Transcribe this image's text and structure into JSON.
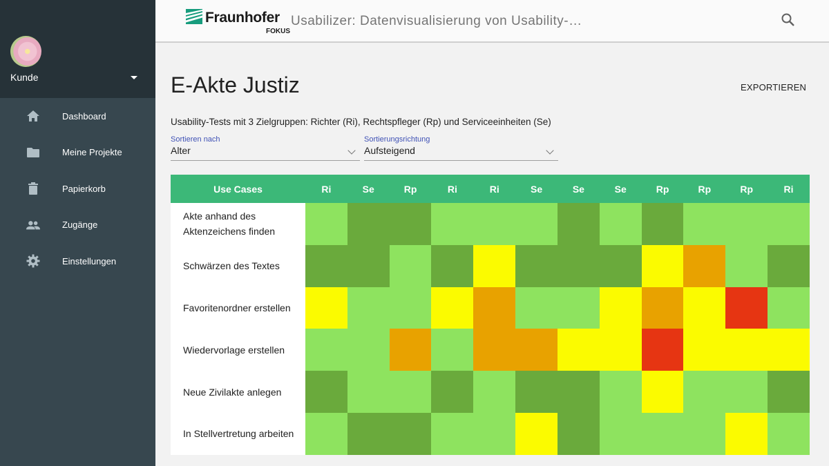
{
  "user": {
    "name": "Kunde"
  },
  "nav": [
    {
      "label": "Dashboard",
      "icon": "home-icon"
    },
    {
      "label": "Meine Projekte",
      "icon": "folder-icon"
    },
    {
      "label": "Papierkorb",
      "icon": "trash-icon"
    },
    {
      "label": "Zugänge",
      "icon": "people-icon"
    },
    {
      "label": "Einstellungen",
      "icon": "gear-icon"
    }
  ],
  "header": {
    "logo_text": "Fraunhofer",
    "logo_sub": "FOKUS",
    "title": "Usabilizer: Datenvisualisierung von Usability-…"
  },
  "page": {
    "title": "E-Akte Justiz",
    "export_label": "EXPORTIEREN",
    "subtitle": "Usability-Tests mit 3 Zielgruppen: Richter (Ri), Rechtspfleger (Rp) und Serviceeinheiten (Se)"
  },
  "sort": {
    "by_label": "Sortieren nach",
    "by_value": "Alter",
    "dir_label": "Sortierungsrichtung",
    "dir_value": "Aufsteigend"
  },
  "matrix": {
    "header_label": "Use Cases",
    "columns": [
      "Ri",
      "Se",
      "Rp",
      "Ri",
      "Ri",
      "Se",
      "Se",
      "Se",
      "Rp",
      "Rp",
      "Rp",
      "Ri"
    ],
    "rows": [
      {
        "label": "Akte anhand des Aktenzeichens finden",
        "cells": [
          "L",
          "D",
          "D",
          "L",
          "L",
          "L",
          "D",
          "L",
          "D",
          "L",
          "L",
          "L"
        ]
      },
      {
        "label": "Schwärzen des Textes",
        "cells": [
          "D",
          "D",
          "L",
          "D",
          "Y",
          "D",
          "D",
          "D",
          "Y",
          "O",
          "L",
          "D"
        ]
      },
      {
        "label": "Favoritenordner erstellen",
        "cells": [
          "Y",
          "L",
          "L",
          "Y",
          "O",
          "L",
          "L",
          "Y",
          "O",
          "Y",
          "R",
          "L"
        ]
      },
      {
        "label": "Wiedervorlage erstellen",
        "cells": [
          "L",
          "L",
          "O",
          "L",
          "O",
          "O",
          "Y",
          "Y",
          "R",
          "Y",
          "Y",
          "Y"
        ]
      },
      {
        "label": "Neue Zivilakte anlegen",
        "cells": [
          "D",
          "L",
          "L",
          "D",
          "L",
          "D",
          "D",
          "L",
          "Y",
          "L",
          "L",
          "D"
        ]
      },
      {
        "label": "In Stellvertretung arbeiten",
        "cells": [
          "L",
          "D",
          "D",
          "L",
          "L",
          "Y",
          "D",
          "L",
          "L",
          "L",
          "Y",
          "L"
        ]
      }
    ]
  },
  "colors": {
    "L": "#8ee35f",
    "D": "#6aaa3c",
    "Y": "#fbfb00",
    "O": "#e8a200",
    "R": "#e63512",
    "header": "#3cb878",
    "sidebar": "#37474f",
    "sidebar_top": "#263238"
  }
}
